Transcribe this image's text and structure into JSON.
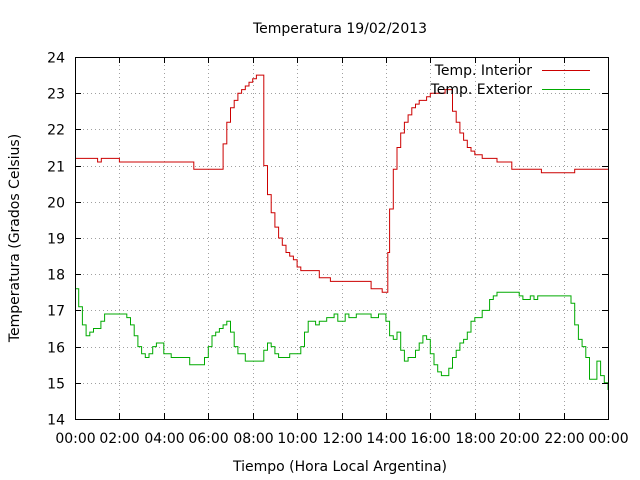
{
  "chart_data": {
    "type": "line",
    "title": "Temperatura 19/02/2013",
    "xlabel": "Tiempo (Hora Local Argentina)",
    "ylabel": "Temperatura (Grados Celsius)",
    "xlim": [
      "00:00",
      "24:00"
    ],
    "ylim": [
      14,
      24
    ],
    "grid": true,
    "legend_position": "top-right",
    "x_tick_labels": [
      "00:00",
      "02:00",
      "04:00",
      "06:00",
      "08:00",
      "10:00",
      "12:00",
      "14:00",
      "16:00",
      "18:00",
      "20:00",
      "22:00",
      "00:00"
    ],
    "y_tick_labels": [
      "14",
      "15",
      "16",
      "17",
      "18",
      "19",
      "20",
      "21",
      "22",
      "23",
      "24"
    ],
    "series": [
      {
        "name": "Temp. Interior",
        "color": "#cc0000",
        "x": [
          "00:00",
          "01:00",
          "01:01",
          "01:10",
          "01:11",
          "02:00",
          "05:00",
          "05:20",
          "05:21",
          "06:30",
          "06:40",
          "06:50",
          "07:00",
          "07:10",
          "07:20",
          "07:30",
          "07:40",
          "07:50",
          "08:00",
          "08:10",
          "08:20",
          "08:30",
          "08:40",
          "08:50",
          "09:00",
          "09:10",
          "09:20",
          "09:30",
          "09:40",
          "09:50",
          "10:00",
          "10:10",
          "10:20",
          "10:30",
          "10:40",
          "10:50",
          "11:00",
          "11:30",
          "11:40",
          "12:00",
          "12:30",
          "13:00",
          "13:20",
          "13:40",
          "13:50",
          "14:00",
          "14:05",
          "14:10",
          "14:20",
          "14:30",
          "14:40",
          "14:50",
          "15:00",
          "15:10",
          "15:20",
          "15:30",
          "15:40",
          "15:50",
          "16:00",
          "16:10",
          "16:20",
          "16:30",
          "16:40",
          "16:50",
          "17:00",
          "17:10",
          "17:20",
          "17:30",
          "17:40",
          "17:50",
          "18:00",
          "18:20",
          "18:40",
          "19:00",
          "19:20",
          "19:40",
          "20:00",
          "20:30",
          "21:00",
          "21:30",
          "22:00",
          "22:15",
          "22:30",
          "23:00",
          "23:30",
          "24:00"
        ],
        "y": [
          21.2,
          21.2,
          21.1,
          21.1,
          21.2,
          21.1,
          21.1,
          21.1,
          20.9,
          20.9,
          21.6,
          22.2,
          22.6,
          22.8,
          23.0,
          23.1,
          23.2,
          23.3,
          23.4,
          23.5,
          23.5,
          21.0,
          20.2,
          19.7,
          19.3,
          19.0,
          18.8,
          18.6,
          18.5,
          18.4,
          18.2,
          18.1,
          18.1,
          18.1,
          18.1,
          18.1,
          17.9,
          17.8,
          17.8,
          17.8,
          17.8,
          17.8,
          17.6,
          17.6,
          17.5,
          17.5,
          18.6,
          19.8,
          20.9,
          21.5,
          21.9,
          22.2,
          22.4,
          22.6,
          22.7,
          22.8,
          22.8,
          22.9,
          23.0,
          23.0,
          23.0,
          23.0,
          23.1,
          23.1,
          22.5,
          22.2,
          21.9,
          21.7,
          21.5,
          21.4,
          21.3,
          21.2,
          21.2,
          21.1,
          21.1,
          20.9,
          20.9,
          20.9,
          20.8,
          20.8,
          20.8,
          20.8,
          20.9,
          20.9,
          20.9,
          20.9
        ]
      },
      {
        "name": "Temp. Exterior",
        "color": "#00aa00",
        "x": [
          "00:00",
          "00:10",
          "00:20",
          "00:30",
          "00:40",
          "00:50",
          "01:00",
          "01:10",
          "01:20",
          "01:30",
          "01:40",
          "02:00",
          "02:20",
          "02:30",
          "02:40",
          "02:50",
          "03:00",
          "03:10",
          "03:20",
          "03:30",
          "03:40",
          "04:00",
          "04:20",
          "04:40",
          "05:00",
          "05:10",
          "05:20",
          "05:40",
          "05:50",
          "06:00",
          "06:10",
          "06:20",
          "06:30",
          "06:40",
          "06:50",
          "07:00",
          "07:10",
          "07:20",
          "07:40",
          "08:00",
          "08:20",
          "08:30",
          "08:40",
          "08:50",
          "09:00",
          "09:10",
          "09:20",
          "09:40",
          "10:00",
          "10:10",
          "10:20",
          "10:30",
          "10:40",
          "10:50",
          "11:00",
          "11:10",
          "11:20",
          "11:30",
          "11:40",
          "11:50",
          "12:00",
          "12:10",
          "12:20",
          "12:30",
          "12:40",
          "13:00",
          "13:10",
          "13:20",
          "13:40",
          "14:00",
          "14:10",
          "14:20",
          "14:30",
          "14:40",
          "14:50",
          "15:00",
          "15:20",
          "15:30",
          "15:40",
          "15:50",
          "16:00",
          "16:10",
          "16:20",
          "16:30",
          "16:40",
          "16:50",
          "17:00",
          "17:10",
          "17:20",
          "17:30",
          "17:40",
          "17:50",
          "18:00",
          "18:20",
          "18:40",
          "18:50",
          "19:00",
          "19:10",
          "19:20",
          "19:30",
          "20:00",
          "20:10",
          "20:20",
          "20:30",
          "20:40",
          "20:50",
          "21:00",
          "21:20",
          "21:40",
          "22:00",
          "22:10",
          "22:20",
          "22:30",
          "22:40",
          "22:50",
          "23:00",
          "23:10",
          "23:20",
          "23:30",
          "23:40",
          "23:50",
          "24:00"
        ],
        "y": [
          17.6,
          17.1,
          16.6,
          16.3,
          16.4,
          16.5,
          16.5,
          16.7,
          16.9,
          16.9,
          16.9,
          16.9,
          16.8,
          16.6,
          16.3,
          16.0,
          15.8,
          15.7,
          15.8,
          16.0,
          16.1,
          15.8,
          15.7,
          15.7,
          15.7,
          15.5,
          15.5,
          15.5,
          15.7,
          16.0,
          16.3,
          16.4,
          16.5,
          16.6,
          16.7,
          16.4,
          16.0,
          15.8,
          15.6,
          15.6,
          15.6,
          15.9,
          16.1,
          16.0,
          15.8,
          15.7,
          15.7,
          15.8,
          15.8,
          16.0,
          16.4,
          16.7,
          16.7,
          16.6,
          16.7,
          16.7,
          16.8,
          16.8,
          16.9,
          16.7,
          16.7,
          16.9,
          16.8,
          16.8,
          16.9,
          16.9,
          16.9,
          16.8,
          16.9,
          16.7,
          16.3,
          16.2,
          16.4,
          15.9,
          15.6,
          15.7,
          15.9,
          16.1,
          16.3,
          16.2,
          15.8,
          15.5,
          15.3,
          15.2,
          15.2,
          15.4,
          15.7,
          15.9,
          16.1,
          16.2,
          16.4,
          16.7,
          16.8,
          17.0,
          17.3,
          17.4,
          17.5,
          17.5,
          17.5,
          17.5,
          17.4,
          17.3,
          17.3,
          17.4,
          17.3,
          17.4,
          17.4,
          17.4,
          17.4,
          17.4,
          17.4,
          17.2,
          16.6,
          16.2,
          16.0,
          15.7,
          15.1,
          15.1,
          15.6,
          15.2,
          15.0,
          14.8
        ]
      }
    ]
  }
}
